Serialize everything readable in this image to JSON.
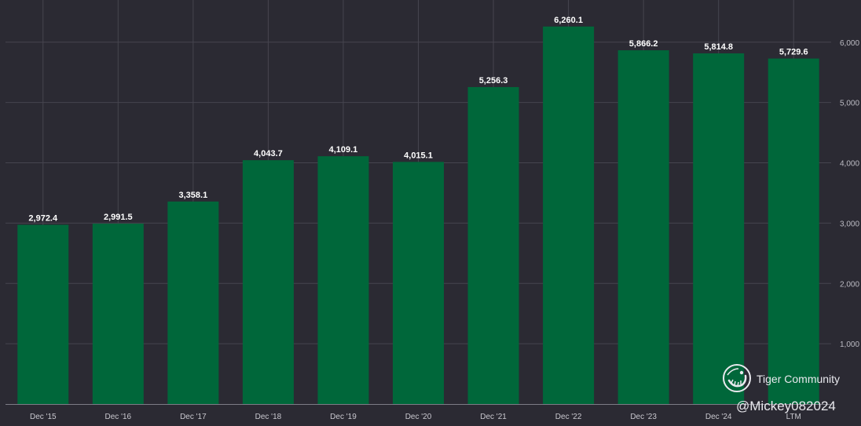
{
  "chart_data": {
    "type": "bar",
    "categories": [
      "Dec '15",
      "Dec '16",
      "Dec '17",
      "Dec '18",
      "Dec '19",
      "Dec '20",
      "Dec '21",
      "Dec '22",
      "Dec '23",
      "Dec '24",
      "LTM"
    ],
    "values": [
      2972.4,
      2991.5,
      3358.1,
      4043.7,
      4109.1,
      4015.1,
      5256.3,
      6260.1,
      5866.2,
      5814.8,
      5729.6
    ],
    "value_labels": [
      "2,972.4",
      "2,991.5",
      "3,358.1",
      "4,043.7",
      "4,109.1",
      "4,015.1",
      "5,256.3",
      "6,260.1",
      "5,866.2",
      "5,814.8",
      "5,729.6"
    ],
    "y_ticks": [
      1000,
      2000,
      3000,
      4000,
      5000,
      6000
    ],
    "y_tick_labels": [
      "1,000",
      "2,000",
      "3,000",
      "4,000",
      "5,000",
      "6,000"
    ],
    "ylim": [
      0,
      6700
    ],
    "y_axis_position": "right",
    "grid": true,
    "bar_color": "#00673a",
    "background_color": "#2b2a33",
    "title": "",
    "xlabel": "",
    "ylabel": ""
  },
  "watermark": {
    "brand": "Tiger Community",
    "handle": "@Mickey082024",
    "icon": "tiger-logo-icon"
  }
}
